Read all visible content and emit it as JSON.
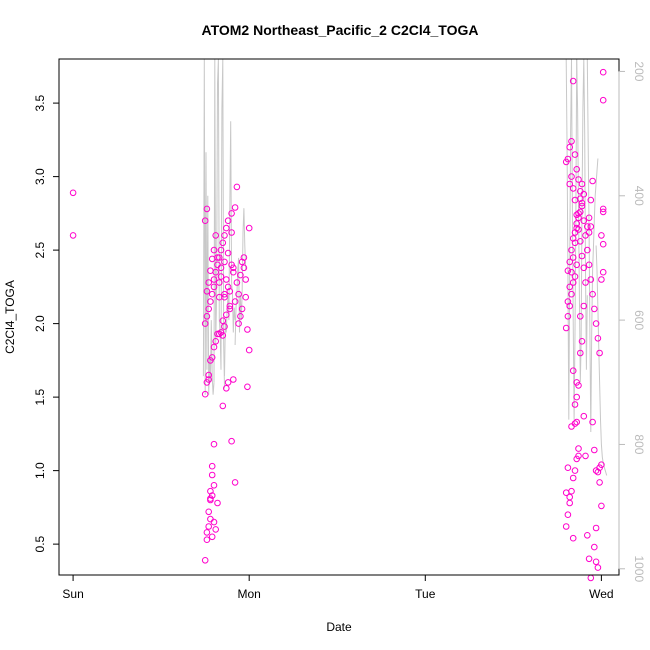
{
  "chart_data": {
    "type": "scatter",
    "title": "ATOM2 Northeast_Pacific_2 C2Cl4_TOGA",
    "xlabel": "Date",
    "ylabel": "C2Cl4_TOGA",
    "x_ticks": [
      {
        "x": 0,
        "label": "Sun"
      },
      {
        "x": 1,
        "label": "Mon"
      },
      {
        "x": 2,
        "label": "Tue"
      },
      {
        "x": 3,
        "label": "Wed"
      }
    ],
    "y_ticks": [
      {
        "y": 0.5,
        "label": "0.5"
      },
      {
        "y": 1.0,
        "label": "1.0"
      },
      {
        "y": 1.5,
        "label": "1.5"
      },
      {
        "y": 2.0,
        "label": "2.0"
      },
      {
        "y": 2.5,
        "label": "2.5"
      },
      {
        "y": 3.0,
        "label": "3.0"
      },
      {
        "y": 3.5,
        "label": "3.5"
      }
    ],
    "right_axis": {
      "ticks": [
        {
          "v": 200,
          "label": "200"
        },
        {
          "v": 400,
          "label": "400"
        },
        {
          "v": 600,
          "label": "600"
        },
        {
          "v": 800,
          "label": "800"
        },
        {
          "v": 1000,
          "label": "1000"
        }
      ],
      "range": [
        180,
        1010
      ],
      "reversed": true,
      "color": "#bbbbbb"
    },
    "xlim": [
      -0.08,
      3.1
    ],
    "ylim": [
      0.29,
      3.8
    ],
    "point_color": "#ff00cc",
    "line_color": "#c8c8c8",
    "series": [
      {
        "values": [
          [
            0.0,
            2.6
          ],
          [
            0.0,
            2.89
          ],
          [
            0.75,
            0.39
          ],
          [
            0.76,
            0.53
          ],
          [
            0.76,
            0.58
          ],
          [
            0.77,
            0.62
          ],
          [
            0.77,
            0.72
          ],
          [
            0.78,
            0.8
          ],
          [
            0.78,
            0.81
          ],
          [
            0.78,
            0.86
          ],
          [
            0.79,
            0.97
          ],
          [
            0.79,
            1.03
          ],
          [
            0.8,
            1.18
          ],
          [
            0.75,
            1.52
          ],
          [
            0.76,
            1.6
          ],
          [
            0.77,
            1.62
          ],
          [
            0.78,
            1.75
          ],
          [
            0.79,
            1.77
          ],
          [
            0.8,
            1.84
          ],
          [
            0.81,
            1.88
          ],
          [
            0.82,
            1.93
          ],
          [
            0.83,
            1.93
          ],
          [
            0.84,
            1.94
          ],
          [
            0.75,
            2.0
          ],
          [
            0.76,
            2.05
          ],
          [
            0.77,
            2.1
          ],
          [
            0.78,
            2.15
          ],
          [
            0.79,
            2.2
          ],
          [
            0.8,
            2.25
          ],
          [
            0.8,
            2.3
          ],
          [
            0.81,
            2.35
          ],
          [
            0.82,
            2.4
          ],
          [
            0.83,
            2.45
          ],
          [
            0.84,
            2.5
          ],
          [
            0.85,
            2.55
          ],
          [
            0.86,
            2.6
          ],
          [
            0.87,
            2.65
          ],
          [
            0.88,
            2.7
          ],
          [
            0.9,
            2.75
          ],
          [
            0.92,
            2.79
          ],
          [
            0.93,
            2.93
          ],
          [
            0.86,
            2.2
          ],
          [
            0.87,
            2.3
          ],
          [
            0.88,
            2.25
          ],
          [
            0.89,
            2.1
          ],
          [
            0.9,
            2.4
          ],
          [
            0.91,
            2.35
          ],
          [
            0.92,
            2.15
          ],
          [
            0.93,
            2.28
          ],
          [
            0.94,
            2.0
          ],
          [
            0.95,
            2.05
          ],
          [
            0.96,
            2.42
          ],
          [
            0.97,
            2.45
          ],
          [
            0.98,
            2.18
          ],
          [
            0.99,
            1.96
          ],
          [
            1.0,
            2.65
          ],
          [
            1.0,
            1.82
          ],
          [
            0.99,
            1.57
          ],
          [
            0.9,
            1.2
          ],
          [
            0.88,
            1.6
          ],
          [
            0.85,
            1.44
          ],
          [
            0.86,
            2.18
          ],
          [
            0.89,
            2.22
          ],
          [
            0.91,
            2.38
          ],
          [
            0.84,
            2.32
          ],
          [
            0.83,
            2.28
          ],
          [
            0.82,
            2.45
          ],
          [
            0.81,
            2.6
          ],
          [
            0.8,
            2.5
          ],
          [
            0.85,
            1.92
          ],
          [
            0.87,
            1.56
          ],
          [
            0.92,
            0.92
          ],
          [
            0.84,
            2.38
          ],
          [
            0.86,
            2.42
          ],
          [
            0.88,
            2.48
          ],
          [
            0.9,
            2.62
          ],
          [
            0.94,
            2.2
          ],
          [
            0.96,
            2.1
          ],
          [
            0.98,
            2.3
          ],
          [
            0.97,
            2.38
          ],
          [
            0.95,
            2.33
          ],
          [
            0.82,
            0.78
          ],
          [
            0.81,
            0.6
          ],
          [
            0.79,
            0.83
          ],
          [
            0.8,
            0.65
          ],
          [
            0.83,
            2.18
          ],
          [
            0.85,
            2.02
          ],
          [
            0.86,
            1.98
          ],
          [
            0.87,
            2.06
          ],
          [
            0.89,
            2.12
          ],
          [
            0.91,
            1.62
          ],
          [
            0.77,
            2.28
          ],
          [
            0.78,
            2.36
          ],
          [
            0.79,
            2.44
          ],
          [
            0.76,
            2.22
          ],
          [
            0.75,
            2.7
          ],
          [
            0.76,
            2.78
          ],
          [
            0.77,
            1.65
          ],
          [
            0.78,
            0.67
          ],
          [
            0.79,
            0.55
          ],
          [
            0.8,
            0.9
          ],
          [
            2.8,
            0.62
          ],
          [
            2.81,
            0.7
          ],
          [
            2.82,
            0.78
          ],
          [
            2.83,
            0.86
          ],
          [
            2.84,
            0.95
          ],
          [
            2.85,
            1.0
          ],
          [
            2.86,
            1.08
          ],
          [
            2.87,
            1.15
          ],
          [
            2.8,
            1.97
          ],
          [
            2.81,
            2.15
          ],
          [
            2.82,
            2.25
          ],
          [
            2.83,
            2.35
          ],
          [
            2.84,
            2.45
          ],
          [
            2.85,
            2.55
          ],
          [
            2.86,
            2.65
          ],
          [
            2.87,
            2.75
          ],
          [
            2.88,
            2.85
          ],
          [
            2.89,
            2.95
          ],
          [
            2.8,
            3.1
          ],
          [
            2.81,
            3.12
          ],
          [
            2.82,
            3.2
          ],
          [
            2.83,
            3.24
          ],
          [
            2.84,
            3.65
          ],
          [
            2.85,
            3.15
          ],
          [
            2.86,
            3.05
          ],
          [
            2.87,
            2.98
          ],
          [
            2.88,
            2.9
          ],
          [
            2.89,
            2.8
          ],
          [
            2.9,
            2.7
          ],
          [
            2.91,
            2.6
          ],
          [
            2.92,
            2.5
          ],
          [
            2.93,
            2.4
          ],
          [
            2.94,
            2.3
          ],
          [
            2.95,
            2.2
          ],
          [
            2.96,
            2.1
          ],
          [
            2.97,
            2.0
          ],
          [
            2.98,
            1.9
          ],
          [
            2.99,
            1.8
          ],
          [
            2.84,
            1.68
          ],
          [
            2.86,
            1.6
          ],
          [
            2.87,
            1.58
          ],
          [
            2.88,
            1.8
          ],
          [
            2.89,
            1.88
          ],
          [
            2.9,
            1.37
          ],
          [
            2.91,
            1.1
          ],
          [
            2.92,
            0.56
          ],
          [
            2.93,
            0.4
          ],
          [
            2.94,
            0.27
          ],
          [
            2.83,
            1.3
          ],
          [
            2.85,
            1.32
          ],
          [
            2.86,
            1.33
          ],
          [
            2.87,
            1.1
          ],
          [
            2.95,
            1.33
          ],
          [
            2.96,
            1.14
          ],
          [
            2.97,
            1.0
          ],
          [
            2.98,
            0.99
          ],
          [
            2.99,
            0.92
          ],
          [
            3.0,
            0.76
          ],
          [
            2.97,
            0.61
          ],
          [
            2.96,
            0.48
          ],
          [
            2.97,
            0.38
          ],
          [
            2.98,
            0.34
          ],
          [
            2.99,
            1.02
          ],
          [
            3.0,
            1.04
          ],
          [
            3.0,
            2.3
          ],
          [
            3.01,
            2.35
          ],
          [
            3.01,
            2.54
          ],
          [
            3.0,
            2.6
          ],
          [
            3.01,
            2.76
          ],
          [
            3.01,
            2.78
          ],
          [
            3.01,
            3.52
          ],
          [
            3.01,
            3.71
          ],
          [
            2.81,
            2.36
          ],
          [
            2.82,
            2.42
          ],
          [
            2.83,
            2.5
          ],
          [
            2.84,
            2.58
          ],
          [
            2.85,
            2.62
          ],
          [
            2.86,
            2.68
          ],
          [
            2.87,
            2.72
          ],
          [
            2.88,
            2.76
          ],
          [
            2.89,
            2.82
          ],
          [
            2.9,
            2.88
          ],
          [
            2.82,
            2.95
          ],
          [
            2.83,
            3.0
          ],
          [
            2.84,
            2.92
          ],
          [
            2.85,
            2.84
          ],
          [
            2.86,
            2.74
          ],
          [
            2.87,
            2.64
          ],
          [
            2.88,
            2.56
          ],
          [
            2.89,
            2.46
          ],
          [
            2.9,
            2.38
          ],
          [
            2.91,
            2.28
          ],
          [
            2.81,
            2.05
          ],
          [
            2.82,
            2.12
          ],
          [
            2.83,
            2.2
          ],
          [
            2.84,
            2.28
          ],
          [
            2.85,
            2.32
          ],
          [
            2.86,
            2.4
          ],
          [
            2.92,
            2.66
          ],
          [
            2.93,
            2.72
          ],
          [
            2.94,
            2.84
          ],
          [
            2.95,
            2.97
          ],
          [
            2.82,
            0.82
          ],
          [
            2.84,
            0.54
          ],
          [
            2.8,
            0.85
          ],
          [
            2.81,
            1.02
          ],
          [
            2.85,
            1.45
          ],
          [
            2.86,
            1.5
          ],
          [
            2.88,
            2.05
          ],
          [
            2.9,
            2.12
          ],
          [
            2.93,
            2.62
          ],
          [
            2.94,
            2.66
          ]
        ]
      }
    ]
  }
}
